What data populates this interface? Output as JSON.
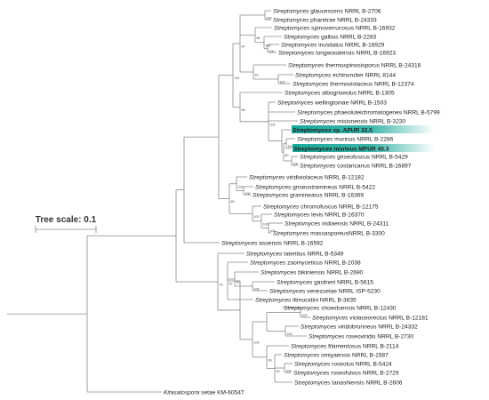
{
  "scale": {
    "label": "Tree scale: 0.1"
  },
  "colors": {
    "branch": "#8a8a8a",
    "highlight": "#1aa89a",
    "text": "#222222"
  },
  "leaves": [
    {
      "id": "L0",
      "genus": "Streptomyces",
      "name": "glaucescens NRRL B-2706"
    },
    {
      "id": "L1",
      "genus": "Streptomyces",
      "name": "pharetrae NRRL B-24333"
    },
    {
      "id": "L2",
      "genus": "Streptomyces",
      "name": "spinoverrucosus NRRL B-16932"
    },
    {
      "id": "L3",
      "genus": "Streptomyces",
      "name": "galbus NRRL B-2283"
    },
    {
      "id": "L4",
      "genus": "Streptomyces",
      "name": "inusitatus NRRL B-16929"
    },
    {
      "id": "L5",
      "genus": "Streptomyces",
      "name": "longwoodensis NRRL B-16923"
    },
    {
      "id": "L6",
      "genus": "Streptomyces",
      "name": "thermospinosisporus NRRL B-24318"
    },
    {
      "id": "L7",
      "genus": "Streptomyces",
      "name": "echinoruber NRRL 8144"
    },
    {
      "id": "L8",
      "genus": "Streptomyces",
      "name": "thermoviolaceus NRRL B-12374"
    },
    {
      "id": "L9",
      "genus": "Streptomyces",
      "name": "albogriseolus NRRL B-1305"
    },
    {
      "id": "L10",
      "genus": "Streptomyces",
      "name": "wellingtoniae NRRL B-1503"
    },
    {
      "id": "L11",
      "genus": "Streptomyces",
      "name": "phaeoluteichromatogenes NRRL B-5799"
    },
    {
      "id": "L12",
      "genus": "Streptomyces",
      "name": "misionensis NRRL B-3230"
    },
    {
      "id": "L13",
      "genus": "Streptomyces",
      "name": "sp. APUR 32.5",
      "highlight": true
    },
    {
      "id": "L14",
      "genus": "Streptomyces",
      "name": "murinus NRRL B-2286"
    },
    {
      "id": "L15",
      "genus": "Streptomyces",
      "name": "murinus MPUR 40.3",
      "highlight": true
    },
    {
      "id": "L16",
      "genus": "Streptomyces",
      "name": "griseofuscus NRRL B-5429"
    },
    {
      "id": "L17",
      "genus": "Streptomyces",
      "name": "costaricanus NRRL B-16897"
    },
    {
      "id": "L18",
      "genus": "Streptomyces",
      "name": "viridiviolaceus NRRL B-12182"
    },
    {
      "id": "L19",
      "genus": "Streptomyces",
      "name": "griseostramineus NRRL B-5422"
    },
    {
      "id": "L20",
      "genus": "Streptomyces",
      "name": "graminearus NRRL B-16369"
    },
    {
      "id": "L21",
      "genus": "Streptomyces",
      "name": "chromofuscus NRRL B-12175"
    },
    {
      "id": "L22",
      "genus": "Streptomyces",
      "name": "levis NRRL B-16370"
    },
    {
      "id": "L23",
      "genus": "Streptomyces",
      "name": "indiaensis NRRL B-24311"
    },
    {
      "id": "L24",
      "genus": "Streptomyces",
      "name": "massasporeusNRRL B-3300"
    },
    {
      "id": "L25",
      "genus": "Streptomyces",
      "name": "asoensis NRRL B-16592"
    },
    {
      "id": "L26",
      "genus": "Streptomyces",
      "name": "lateritius NRRL B-5349"
    },
    {
      "id": "L27",
      "genus": "Streptomyces",
      "name": "zaomyceticus NRRL B-2038"
    },
    {
      "id": "L28",
      "genus": "Streptomyces",
      "name": "bikiniensis NRRL B-2690"
    },
    {
      "id": "L29",
      "genus": "Streptomyces",
      "name": "gardneri NRRL B-5615"
    },
    {
      "id": "L30",
      "genus": "Streptomyces",
      "name": "venezuelae NRRL ISP-5230"
    },
    {
      "id": "L31",
      "genus": "Streptomyces",
      "name": "litmocidini NRRL B-3635"
    },
    {
      "id": "L32",
      "genus": "Streptomyces",
      "name": "showdoensis NRRL B-12430"
    },
    {
      "id": "L33",
      "genus": "Streptomyces",
      "name": "violaceorectus NRRL B-12181"
    },
    {
      "id": "L34",
      "genus": "Streptomyces",
      "name": "viridobrunneus NRRL B-24332"
    },
    {
      "id": "L35",
      "genus": "Streptomyces",
      "name": "roseoviridis NRRL B-2730"
    },
    {
      "id": "L36",
      "genus": "Streptomyces",
      "name": "filamentosus NRRL B-2114"
    },
    {
      "id": "L37",
      "genus": "Streptomyces",
      "name": "omiyaensis NRRL B-1587"
    },
    {
      "id": "L38",
      "genus": "Streptomyces",
      "name": "roseolus NRRL B-5424"
    },
    {
      "id": "L39",
      "genus": "Streptomyces",
      "name": "roseofulvus NRRL B-2729"
    },
    {
      "id": "L40",
      "genus": "Streptomyces",
      "name": "tanashiensis NRRL B-2606"
    },
    {
      "id": "L41",
      "genus": "Kitasatospora",
      "name": "setae KM-6054T"
    }
  ],
  "bootstrap": [
    {
      "node": "N_L0_1",
      "value": "100"
    },
    {
      "node": "N_L4_5",
      "value": "100"
    },
    {
      "node": "N_L3_5",
      "value": "100"
    },
    {
      "node": "N_L2_5",
      "value": "66"
    },
    {
      "node": "N_L7_8",
      "value": "100"
    },
    {
      "node": "N_L6_8",
      "value": "61"
    },
    {
      "node": "N_L0_8",
      "value": "67"
    },
    {
      "node": "N_L14_15",
      "value": "100"
    },
    {
      "node": "N_L16_17",
      "value": "100"
    },
    {
      "node": "N_L14_17",
      "value": "80"
    },
    {
      "node": "N_L10_17",
      "value": "100"
    },
    {
      "node": "N_L9_17",
      "value": "96"
    },
    {
      "node": "N_L0_17",
      "value": "110"
    },
    {
      "node": "N_L19_20",
      "value": "100"
    },
    {
      "node": "N_L18_20",
      "value": "100"
    },
    {
      "node": "N_L23_24",
      "value": "100"
    },
    {
      "node": "N_L22_24",
      "value": "100"
    },
    {
      "node": "N_L21_24",
      "value": "100"
    },
    {
      "node": "N_L18_24",
      "value": "65"
    },
    {
      "node": "N_L29_30",
      "value": "100"
    },
    {
      "node": "N_L28_30",
      "value": "62"
    },
    {
      "node": "N_L27_31",
      "value": "97"
    },
    {
      "node": "N_L26_31",
      "value": "79"
    },
    {
      "node": "N_L32_33",
      "value": "100"
    },
    {
      "node": "N_L34_35",
      "value": "100"
    },
    {
      "node": "N_L38_39",
      "value": "100"
    },
    {
      "node": "N_L37_40",
      "value": "90"
    },
    {
      "node": "N_L36_40",
      "value": "96"
    },
    {
      "node": "N_L32_40",
      "value": "100"
    }
  ]
}
